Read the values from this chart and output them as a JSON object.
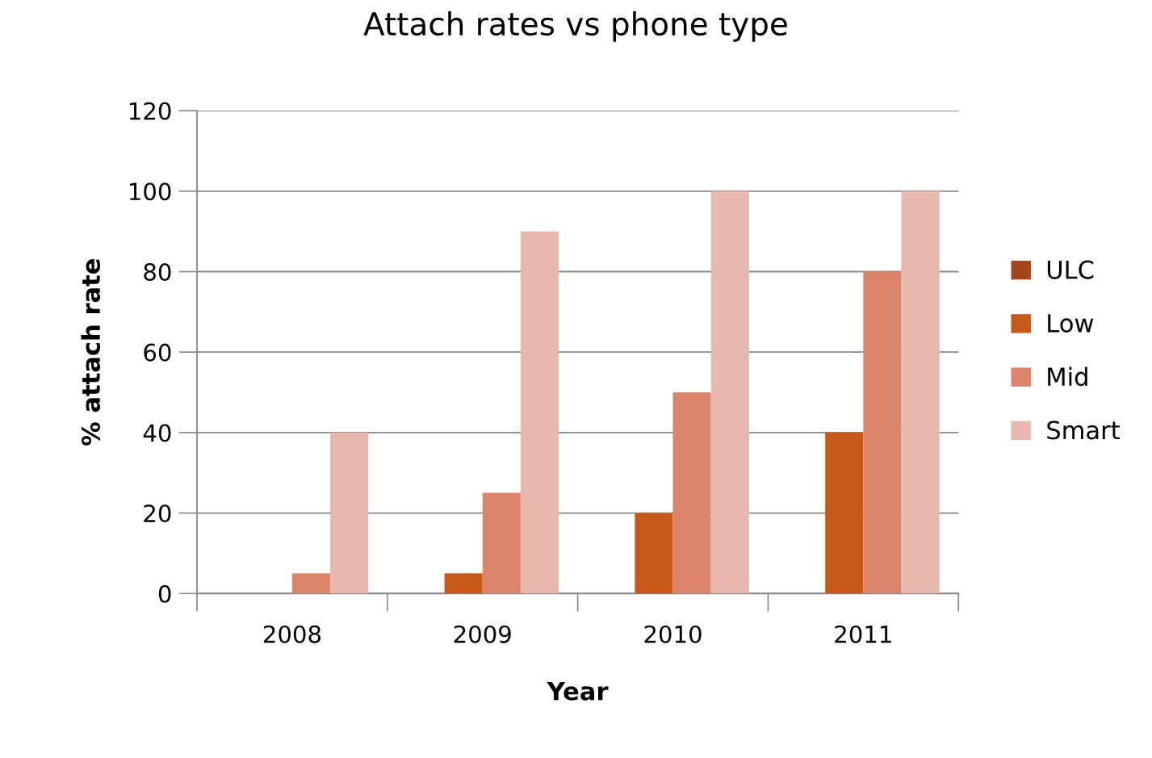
{
  "chart_data": {
    "type": "bar",
    "title": "Attach rates vs phone type",
    "xlabel": "Year",
    "ylabel": "% attach rate",
    "categories": [
      "2008",
      "2009",
      "2010",
      "2011"
    ],
    "series": [
      {
        "name": "ULC",
        "color": "#a5451a",
        "values": [
          0,
          0,
          0,
          0
        ]
      },
      {
        "name": "Low",
        "color": "#c65819",
        "values": [
          0,
          5,
          20,
          40
        ]
      },
      {
        "name": "Mid",
        "color": "#dc846c",
        "values": [
          5,
          25,
          50,
          80
        ]
      },
      {
        "name": "Smart",
        "color": "#e8b8ae",
        "values": [
          40,
          90,
          100,
          100
        ]
      }
    ],
    "ylim": [
      0,
      120
    ],
    "yticks": [
      0,
      20,
      40,
      60,
      80,
      100,
      120
    ],
    "grid": "y",
    "legend": "right"
  }
}
